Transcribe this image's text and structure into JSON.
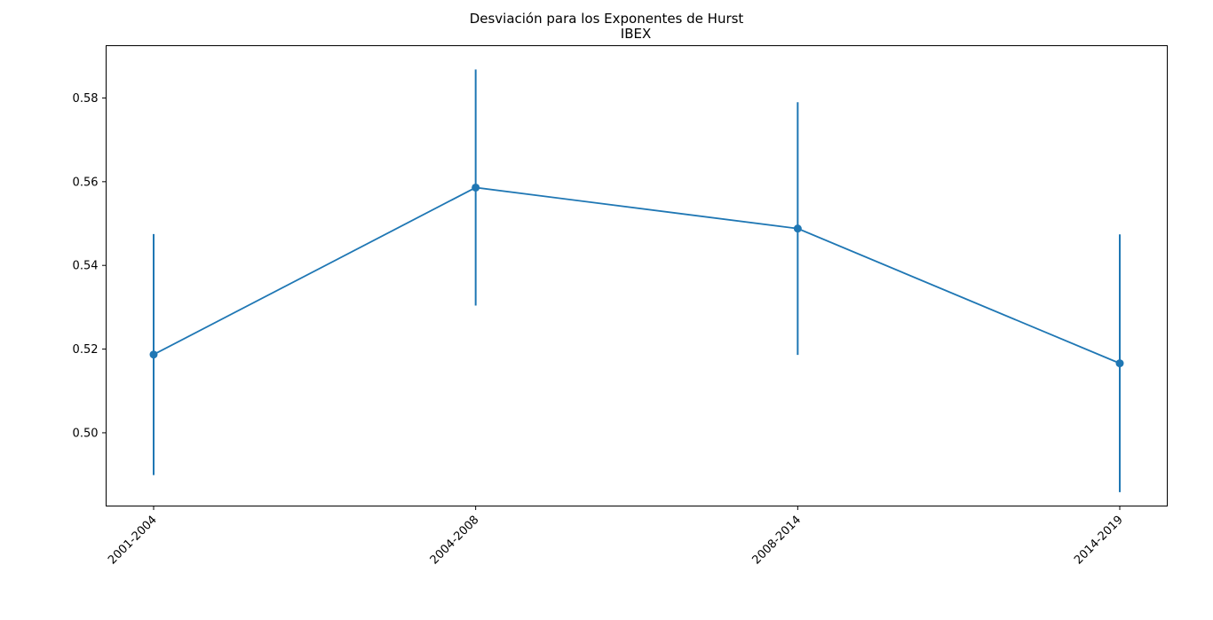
{
  "chart_data": {
    "type": "line",
    "title": "Desviación para los Exponentes de Hurst",
    "subtitle": "IBEX",
    "xlabel": "",
    "ylabel": "",
    "categories": [
      "2001-2004",
      "2004-2008",
      "2008-2014",
      "2014-2019"
    ],
    "series": [
      {
        "values": [
          0.5187,
          0.5586,
          0.5488,
          0.5166
        ],
        "error": [
          0.0288,
          0.0282,
          0.0302,
          0.0308
        ],
        "color": "#1f77b4",
        "marker": "circle"
      }
    ],
    "ylim": [
      0.4825,
      0.5925
    ],
    "yticks": [
      0.5,
      0.52,
      0.54,
      0.56,
      0.58
    ],
    "ytick_labels": [
      "0.50",
      "0.52",
      "0.54",
      "0.56",
      "0.58"
    ],
    "xtick_rotation": "45 degrees",
    "grid": false,
    "legend": "none"
  }
}
